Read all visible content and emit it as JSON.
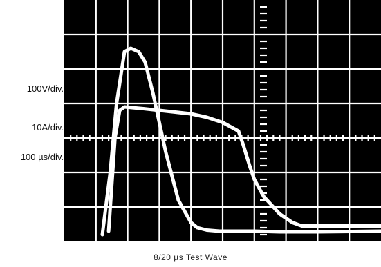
{
  "labels": {
    "vertical_scale_voltage": "100V/div.",
    "vertical_scale_current": "10A/div.",
    "horizontal_scale": "100 µs/div."
  },
  "caption": "8/20 µs Test Wave",
  "colors": {
    "screen": "#000000",
    "grid": "#ffffff",
    "trace": "#ffffff"
  },
  "chart_data": {
    "type": "line",
    "title": "8/20 µs Test Wave",
    "grid": true,
    "divisions": {
      "x": 10,
      "y": 7
    },
    "xlim": [
      0,
      10
    ],
    "ylim": [
      0,
      7
    ],
    "series": [
      {
        "x": [
          1.2,
          1.45,
          1.65,
          1.9,
          2.1,
          2.35,
          2.55,
          2.8,
          3.2,
          3.6,
          4.0,
          4.2,
          4.5,
          4.9,
          5.5,
          6.0,
          6.8,
          8.0,
          10.0
        ],
        "y": [
          0.2,
          2.0,
          4.0,
          5.5,
          5.6,
          5.5,
          5.2,
          4.3,
          2.6,
          1.2,
          0.55,
          0.4,
          0.33,
          0.3,
          0.3,
          0.3,
          0.28,
          0.28,
          0.3
        ]
      },
      {
        "x": [
          1.4,
          1.6,
          1.75,
          1.9,
          2.5,
          3.0,
          3.5,
          4.0,
          4.5,
          5.0,
          5.5,
          5.65,
          5.85,
          6.0,
          6.3,
          6.8,
          7.2,
          7.5,
          10.0
        ],
        "y": [
          0.3,
          3.0,
          3.8,
          3.9,
          3.85,
          3.8,
          3.75,
          3.7,
          3.6,
          3.45,
          3.2,
          2.8,
          2.2,
          1.8,
          1.3,
          0.8,
          0.55,
          0.45,
          0.45
        ]
      }
    ]
  }
}
